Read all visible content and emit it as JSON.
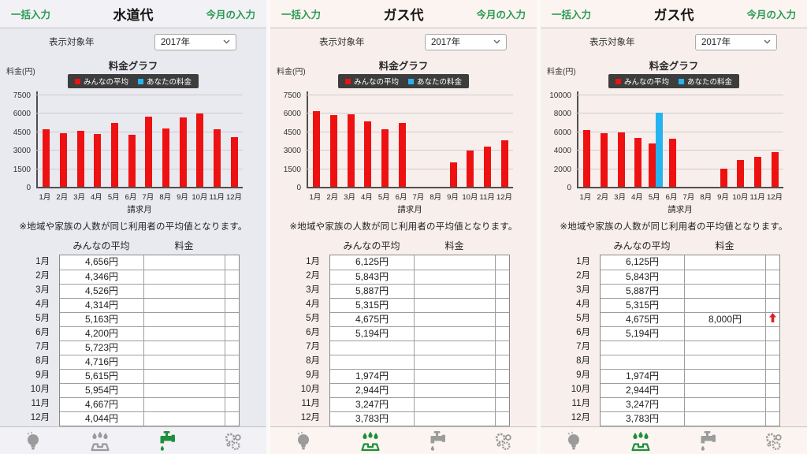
{
  "shared": {
    "top_bar": {
      "left_link": "一括入力",
      "right_link": "今月の入力"
    },
    "year_selector": {
      "label": "表示対象年",
      "value": "2017年",
      "chevron_icon": "chevron-down-icon"
    },
    "chart": {
      "title": "料金グラフ",
      "y_axis_label": "料金(円)",
      "x_axis_label": "請求月",
      "note": "※地域や家族の人数が同じ利用者の平均値となります。",
      "legend": [
        {
          "label": "みんなの平均",
          "color": "#ee1111",
          "icon": "red-square-swatch"
        },
        {
          "label": "あなたの料金",
          "color": "#25b4f0",
          "icon": "blue-square-swatch"
        }
      ]
    },
    "table_headers": {
      "average": "みんなの平均",
      "fee": "料金"
    },
    "months": [
      "1月",
      "2月",
      "3月",
      "4月",
      "5月",
      "6月",
      "7月",
      "8月",
      "9月",
      "10月",
      "11月",
      "12月"
    ],
    "nav": [
      {
        "key": "electricity",
        "label": "電気代",
        "icon": "lightbulb-icon"
      },
      {
        "key": "gas",
        "label": "ガス代",
        "icon": "gas-stove-icon"
      },
      {
        "key": "water",
        "label": "水道代",
        "icon": "faucet-icon"
      },
      {
        "key": "settings",
        "label": "設定",
        "icon": "gears-icon"
      }
    ],
    "colors": {
      "accent_green": "#2a9a52",
      "nav_active_green": "#1f8f3c",
      "bar_red": "#ee1111",
      "bar_blue": "#25b4f0",
      "legend_bg": "#3d3d3d"
    }
  },
  "panels": [
    {
      "title": "水道代",
      "active_nav": 2,
      "colors": {
        "bg": "#e9e9f0",
        "chrome": "#f1f1f6"
      },
      "chart_data": {
        "type": "bar",
        "title": "料金グラフ",
        "xlabel": "請求月",
        "ylabel": "料金(円)",
        "categories": [
          "1月",
          "2月",
          "3月",
          "4月",
          "5月",
          "6月",
          "7月",
          "8月",
          "9月",
          "10月",
          "11月",
          "12月"
        ],
        "series": [
          {
            "name": "みんなの平均",
            "key": "average",
            "color": "#ee1111",
            "values": [
              4656,
              4346,
              4526,
              4314,
              5163,
              4200,
              5723,
              4716,
              5615,
              5954,
              4667,
              4044
            ]
          },
          {
            "name": "あなたの料金",
            "key": "yours",
            "color": "#25b4f0",
            "values": [
              null,
              null,
              null,
              null,
              null,
              null,
              null,
              null,
              null,
              null,
              null,
              null
            ]
          }
        ],
        "ylim": [
          0,
          7500
        ],
        "yticks": [
          0,
          1500,
          3000,
          4500,
          6000,
          7500
        ],
        "grid": true,
        "legend_position": "top"
      },
      "table": {
        "average": [
          "4,656円",
          "4,346円",
          "4,526円",
          "4,314円",
          "5,163円",
          "4,200円",
          "5,723円",
          "4,716円",
          "5,615円",
          "5,954円",
          "4,667円",
          "4,044円"
        ],
        "fee": [
          "",
          "",
          "",
          "",
          "",
          "",
          "",
          "",
          "",
          "",
          "",
          ""
        ],
        "arrow_rows": []
      }
    },
    {
      "title": "ガス代",
      "active_nav": 1,
      "colors": {
        "bg": "#f8efec",
        "chrome": "#fbf4f1"
      },
      "chart_data": {
        "type": "bar",
        "title": "料金グラフ",
        "xlabel": "請求月",
        "ylabel": "料金(円)",
        "categories": [
          "1月",
          "2月",
          "3月",
          "4月",
          "5月",
          "6月",
          "7月",
          "8月",
          "9月",
          "10月",
          "11月",
          "12月"
        ],
        "series": [
          {
            "name": "みんなの平均",
            "key": "average",
            "color": "#ee1111",
            "values": [
              6125,
              5843,
              5887,
              5315,
              4675,
              5194,
              null,
              null,
              1974,
              2944,
              3247,
              3783
            ]
          },
          {
            "name": "あなたの料金",
            "key": "yours",
            "color": "#25b4f0",
            "values": [
              null,
              null,
              null,
              null,
              null,
              null,
              null,
              null,
              null,
              null,
              null,
              null
            ]
          }
        ],
        "ylim": [
          0,
          7500
        ],
        "yticks": [
          0,
          1500,
          3000,
          4500,
          6000,
          7500
        ],
        "grid": true,
        "legend_position": "top"
      },
      "table": {
        "average": [
          "6,125円",
          "5,843円",
          "5,887円",
          "5,315円",
          "4,675円",
          "5,194円",
          "",
          "",
          "1,974円",
          "2,944円",
          "3,247円",
          "3,783円"
        ],
        "fee": [
          "",
          "",
          "",
          "",
          "",
          "",
          "",
          "",
          "",
          "",
          "",
          ""
        ],
        "arrow_rows": []
      }
    },
    {
      "title": "ガス代",
      "active_nav": 1,
      "colors": {
        "bg": "#f8efec",
        "chrome": "#fbf4f1"
      },
      "chart_data": {
        "type": "bar",
        "title": "料金グラフ",
        "xlabel": "請求月",
        "ylabel": "料金(円)",
        "categories": [
          "1月",
          "2月",
          "3月",
          "4月",
          "5月",
          "6月",
          "7月",
          "8月",
          "9月",
          "10月",
          "11月",
          "12月"
        ],
        "series": [
          {
            "name": "みんなの平均",
            "key": "average",
            "color": "#ee1111",
            "values": [
              6125,
              5843,
              5887,
              5315,
              4675,
              5194,
              null,
              null,
              1974,
              2944,
              3247,
              3783
            ]
          },
          {
            "name": "あなたの料金",
            "key": "yours",
            "color": "#25b4f0",
            "values": [
              null,
              null,
              null,
              null,
              8000,
              null,
              null,
              null,
              null,
              null,
              null,
              null
            ]
          }
        ],
        "ylim": [
          0,
          10000
        ],
        "yticks": [
          0,
          2000,
          4000,
          6000,
          8000,
          10000
        ],
        "grid": true,
        "legend_position": "top"
      },
      "table": {
        "average": [
          "6,125円",
          "5,843円",
          "5,887円",
          "5,315円",
          "4,675円",
          "5,194円",
          "",
          "",
          "1,974円",
          "2,944円",
          "3,247円",
          "3,783円"
        ],
        "fee": [
          "",
          "",
          "",
          "",
          "8,000円",
          "",
          "",
          "",
          "",
          "",
          "",
          ""
        ],
        "arrow_rows": [
          4
        ]
      }
    }
  ]
}
